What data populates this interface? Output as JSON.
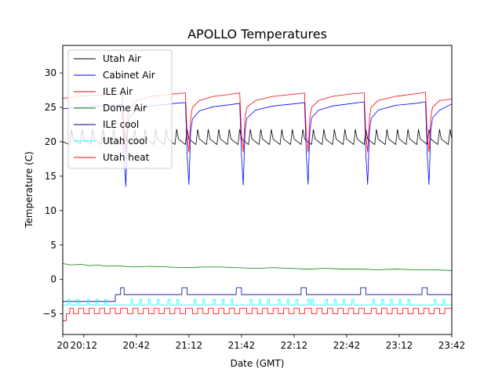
{
  "chart_data": {
    "type": "line",
    "title": "APOLLO Temperatures",
    "xlabel": "Date (GMT)",
    "ylabel": "Temperature (C)",
    "xlim": [
      0,
      222
    ],
    "ylim": [
      -8,
      34
    ],
    "grid": false,
    "legend_position": "top-left",
    "x_unit": "minutes after 20:00 GMT",
    "x_ticks": [
      {
        "value": 0,
        "label": "20"
      },
      {
        "value": 12,
        "label": "20:12"
      },
      {
        "value": 42,
        "label": "20:42"
      },
      {
        "value": 72,
        "label": "21:12"
      },
      {
        "value": 102,
        "label": "21:42"
      },
      {
        "value": 132,
        "label": "22:12"
      },
      {
        "value": 162,
        "label": "22:42"
      },
      {
        "value": 192,
        "label": "23:12"
      },
      {
        "value": 222,
        "label": "23:42"
      }
    ],
    "y_ticks": [
      {
        "value": -5,
        "label": "−5"
      },
      {
        "value": 0,
        "label": "0"
      },
      {
        "value": 5,
        "label": "5"
      },
      {
        "value": 10,
        "label": "10"
      },
      {
        "value": 15,
        "label": "15"
      },
      {
        "value": 20,
        "label": "20"
      },
      {
        "value": 25,
        "label": "25"
      },
      {
        "value": 30,
        "label": "30"
      }
    ],
    "series": [
      {
        "name": "Utah Air",
        "color": "#000000",
        "x": [
          0,
          4,
          5,
          6,
          10,
          11,
          12,
          16,
          17,
          18,
          22,
          23,
          24,
          28,
          29,
          30,
          34,
          35,
          36,
          40,
          41,
          42,
          46,
          47,
          48,
          52,
          53,
          54,
          58,
          59,
          60,
          64,
          65,
          66,
          70,
          71,
          72,
          76,
          77,
          78,
          82,
          83,
          84,
          88,
          89,
          90,
          94,
          95,
          96,
          100,
          101,
          102,
          106,
          107,
          108,
          112,
          113,
          114,
          118,
          119,
          120,
          124,
          125,
          126,
          130,
          131,
          132,
          136,
          137,
          138,
          142,
          143,
          144,
          148,
          149,
          150,
          154,
          155,
          156,
          160,
          161,
          162,
          166,
          167,
          168,
          172,
          173,
          174,
          178,
          179,
          180,
          184,
          185,
          186,
          190,
          191,
          192,
          196,
          197,
          198,
          202,
          203,
          204,
          208,
          209,
          210,
          214,
          215,
          216,
          220,
          221,
          222
        ],
        "values": [
          20.0,
          19.6,
          21.8,
          20.4,
          19.6,
          21.8,
          20.4,
          19.6,
          21.8,
          20.4,
          19.6,
          21.8,
          20.4,
          19.6,
          21.8,
          20.4,
          19.6,
          21.8,
          20.4,
          19.6,
          21.8,
          20.4,
          19.6,
          21.8,
          20.4,
          19.6,
          21.8,
          20.4,
          19.6,
          21.8,
          20.4,
          19.6,
          21.8,
          20.4,
          19.6,
          21.8,
          20.4,
          19.6,
          21.8,
          20.4,
          19.6,
          21.8,
          20.4,
          19.6,
          21.8,
          20.4,
          19.6,
          21.8,
          20.4,
          19.6,
          21.8,
          20.4,
          19.6,
          21.8,
          20.4,
          19.6,
          21.8,
          20.4,
          19.6,
          21.8,
          20.4,
          19.6,
          21.8,
          20.4,
          19.6,
          21.8,
          20.4,
          19.6,
          21.8,
          20.4,
          19.6,
          21.8,
          20.4,
          19.6,
          21.8,
          20.4,
          19.6,
          21.8,
          20.4,
          19.6,
          21.8,
          20.4,
          19.6,
          21.8,
          20.4,
          19.6,
          21.8,
          20.4,
          19.6,
          21.8,
          20.4,
          19.6,
          21.8,
          20.4,
          19.6,
          21.8,
          20.4,
          19.6,
          21.8,
          20.4,
          19.6,
          21.8,
          20.4,
          19.6,
          21.8,
          20.4,
          19.6,
          21.8,
          20.4,
          19.6,
          21.8,
          20.4
        ]
      },
      {
        "name": "Cabinet Air",
        "color": "#0000ff",
        "x": [
          0,
          10,
          20,
          30,
          34,
          35,
          36,
          37,
          38,
          42,
          50,
          65,
          70,
          71,
          72,
          73,
          74,
          78,
          86,
          96,
          101,
          102,
          103,
          104,
          105,
          110,
          120,
          135,
          138,
          139,
          140,
          141,
          142,
          146,
          154,
          166,
          172,
          173,
          174,
          175,
          176,
          180,
          190,
          202,
          207,
          208,
          209,
          210,
          211,
          215,
          222
        ],
        "values": [
          24.8,
          25.0,
          25.2,
          25.3,
          25.4,
          18.0,
          13.5,
          21.5,
          23.5,
          24.6,
          25.2,
          25.6,
          25.7,
          18.0,
          13.8,
          21.5,
          23.3,
          24.5,
          25.1,
          25.4,
          25.6,
          18.0,
          13.7,
          21.5,
          23.4,
          24.6,
          25.2,
          25.6,
          25.7,
          18.0,
          13.8,
          21.5,
          23.5,
          24.6,
          25.2,
          25.6,
          25.8,
          18.0,
          13.8,
          21.5,
          23.4,
          24.6,
          25.3,
          25.6,
          25.8,
          18.0,
          13.8,
          21.5,
          23.5,
          24.6,
          25.5
        ]
      },
      {
        "name": "ILE Air",
        "color": "#ff0000",
        "x": [
          0,
          10,
          20,
          30,
          34,
          35,
          36,
          37,
          38,
          42,
          50,
          65,
          70,
          71,
          72,
          73,
          74,
          78,
          86,
          96,
          101,
          102,
          103,
          104,
          105,
          110,
          120,
          135,
          138,
          139,
          140,
          141,
          142,
          146,
          154,
          166,
          172,
          173,
          174,
          175,
          176,
          180,
          190,
          202,
          207,
          208,
          209,
          210,
          211,
          215,
          222
        ],
        "values": [
          26.3,
          26.6,
          26.8,
          26.9,
          27.0,
          21.0,
          18.5,
          23.5,
          25.0,
          26.0,
          26.6,
          27.0,
          27.1,
          21.0,
          18.5,
          23.5,
          25.0,
          26.0,
          26.6,
          26.9,
          27.1,
          21.0,
          18.5,
          23.5,
          25.0,
          26.0,
          26.6,
          27.0,
          27.1,
          21.0,
          18.5,
          23.5,
          25.0,
          26.0,
          26.6,
          27.0,
          27.1,
          21.0,
          18.5,
          23.5,
          25.0,
          26.0,
          26.6,
          27.0,
          27.2,
          21.0,
          18.5,
          23.5,
          25.0,
          26.0,
          26.2
        ]
      },
      {
        "name": "Dome Air",
        "color": "#008000",
        "x": [
          0,
          5,
          10,
          15,
          20,
          25,
          30,
          40,
          50,
          60,
          70,
          80,
          90,
          100,
          110,
          120,
          130,
          140,
          150,
          160,
          170,
          180,
          190,
          200,
          210,
          222
        ],
        "values": [
          2.3,
          2.1,
          2.2,
          2.0,
          2.1,
          1.9,
          2.0,
          1.8,
          1.9,
          1.8,
          1.7,
          1.8,
          1.8,
          1.7,
          1.6,
          1.7,
          1.6,
          1.5,
          1.6,
          1.5,
          1.5,
          1.4,
          1.5,
          1.4,
          1.4,
          1.3
        ]
      },
      {
        "name": "ILE cool",
        "color": "#00008b",
        "x": [
          0,
          30,
          30,
          33,
          33,
          35,
          35,
          68,
          68,
          71,
          71,
          99,
          99,
          102,
          102,
          136,
          136,
          139,
          139,
          170,
          170,
          173,
          173,
          205,
          205,
          208,
          208,
          222
        ],
        "values": [
          -3.2,
          -3.2,
          -2.2,
          -2.2,
          -1.2,
          -1.2,
          -2.2,
          -2.2,
          -1.2,
          -1.2,
          -2.2,
          -2.2,
          -1.2,
          -1.2,
          -2.2,
          -2.2,
          -1.2,
          -1.2,
          -2.2,
          -2.2,
          -1.2,
          -1.2,
          -2.2,
          -2.2,
          -1.2,
          -1.2,
          -2.2,
          -2.2
        ]
      },
      {
        "name": "Utah cool",
        "color": "#00ffff",
        "x": [
          0,
          3,
          3,
          4,
          4,
          8,
          8,
          9,
          9,
          14,
          14,
          15,
          15,
          19,
          19,
          20,
          20,
          24,
          24,
          25,
          25,
          39,
          39,
          40,
          40,
          44,
          44,
          45,
          45,
          49,
          49,
          50,
          50,
          54,
          54,
          55,
          55,
          60,
          60,
          61,
          61,
          65,
          65,
          66,
          66,
          75,
          75,
          76,
          76,
          80,
          80,
          81,
          81,
          86,
          86,
          87,
          87,
          91,
          91,
          92,
          92,
          96,
          96,
          97,
          97,
          107,
          107,
          108,
          108,
          112,
          112,
          113,
          113,
          117,
          117,
          118,
          118,
          123,
          123,
          124,
          124,
          128,
          128,
          129,
          129,
          133,
          133,
          134,
          134,
          140,
          140,
          141,
          141,
          142,
          142,
          143,
          143,
          150,
          150,
          151,
          151,
          155,
          155,
          156,
          156,
          160,
          160,
          161,
          161,
          165,
          165,
          166,
          166,
          177,
          177,
          178,
          178,
          182,
          182,
          183,
          183,
          187,
          187,
          188,
          188,
          192,
          192,
          193,
          193,
          197,
          197,
          198,
          198,
          212,
          212,
          213,
          213,
          217,
          217,
          218,
          218,
          222
        ],
        "values": [
          -3.7,
          -3.7,
          -2.9,
          -2.9,
          -3.7,
          -3.7,
          -2.9,
          -2.9,
          -3.7,
          -3.7,
          -2.9,
          -2.9,
          -3.7,
          -3.7,
          -2.9,
          -2.9,
          -3.7,
          -3.7,
          -2.9,
          -2.9,
          -3.7,
          -3.7,
          -2.9,
          -2.9,
          -3.7,
          -3.7,
          -2.9,
          -2.9,
          -3.7,
          -3.7,
          -2.9,
          -2.9,
          -3.7,
          -3.7,
          -2.9,
          -2.9,
          -3.7,
          -3.7,
          -2.9,
          -2.9,
          -3.7,
          -3.7,
          -2.9,
          -2.9,
          -3.7,
          -3.7,
          -2.9,
          -2.9,
          -3.7,
          -3.7,
          -2.9,
          -2.9,
          -3.7,
          -3.7,
          -2.9,
          -2.9,
          -3.7,
          -3.7,
          -2.9,
          -2.9,
          -3.7,
          -3.7,
          -2.9,
          -2.9,
          -3.7,
          -3.7,
          -2.9,
          -2.9,
          -3.7,
          -3.7,
          -2.9,
          -2.9,
          -3.7,
          -3.7,
          -2.9,
          -2.9,
          -3.7,
          -3.7,
          -2.9,
          -2.9,
          -3.7,
          -3.7,
          -2.9,
          -2.9,
          -3.7,
          -3.7,
          -2.9,
          -2.9,
          -3.7,
          -3.7,
          -2.9,
          -2.9,
          -3.7,
          -3.7,
          -2.9,
          -2.9,
          -3.7,
          -3.7,
          -2.9,
          -2.9,
          -3.7,
          -3.7,
          -2.9,
          -2.9,
          -3.7,
          -3.7,
          -2.9,
          -2.9,
          -3.7,
          -3.7,
          -2.9,
          -2.9,
          -3.7,
          -3.7,
          -2.9,
          -2.9,
          -3.7,
          -3.7,
          -2.9,
          -2.9,
          -3.7,
          -3.7,
          -2.9,
          -2.9,
          -3.7,
          -3.7,
          -2.9,
          -2.9,
          -3.7,
          -3.7,
          -2.9,
          -2.9,
          -3.7,
          -3.7,
          -2.9,
          -2.9,
          -3.7,
          -3.7,
          -2.9,
          -2.9,
          -3.7,
          -3.7
        ]
      },
      {
        "name": "Utah heat",
        "color": "#ff0000",
        "x": [
          0,
          2,
          2,
          4,
          4,
          6,
          6,
          9,
          9,
          12,
          12,
          15,
          15,
          18,
          18,
          21,
          21,
          24,
          24,
          27,
          27,
          30,
          30,
          33,
          33,
          37,
          37,
          40,
          40,
          43,
          43,
          46,
          46,
          49,
          49,
          52,
          52,
          55,
          55,
          58,
          58,
          61,
          61,
          64,
          64,
          67,
          67,
          70,
          70,
          74,
          74,
          77,
          77,
          80,
          80,
          83,
          83,
          86,
          86,
          89,
          89,
          92,
          92,
          95,
          95,
          98,
          98,
          101,
          101,
          105,
          105,
          108,
          108,
          111,
          111,
          114,
          114,
          117,
          117,
          120,
          120,
          123,
          123,
          126,
          126,
          129,
          129,
          132,
          132,
          135,
          135,
          138,
          138,
          142,
          142,
          145,
          145,
          148,
          148,
          151,
          151,
          154,
          154,
          157,
          157,
          160,
          160,
          163,
          163,
          166,
          166,
          169,
          169,
          172,
          172,
          176,
          176,
          179,
          179,
          182,
          182,
          185,
          185,
          188,
          188,
          191,
          191,
          194,
          194,
          197,
          197,
          200,
          200,
          203,
          203,
          206,
          206,
          209,
          209,
          212,
          212,
          215,
          215,
          218,
          218,
          222
        ],
        "values": [
          -6.0,
          -6.0,
          -5.0,
          -5.0,
          -4.2,
          -4.2,
          -5.0,
          -5.0,
          -4.2,
          -4.2,
          -5.0,
          -5.0,
          -4.2,
          -4.2,
          -5.0,
          -5.0,
          -4.2,
          -4.2,
          -5.0,
          -5.0,
          -4.2,
          -4.2,
          -5.0,
          -5.0,
          -4.2,
          -4.2,
          -5.0,
          -5.0,
          -4.2,
          -4.2,
          -5.0,
          -5.0,
          -4.2,
          -4.2,
          -5.0,
          -5.0,
          -4.2,
          -4.2,
          -5.0,
          -5.0,
          -4.2,
          -4.2,
          -5.0,
          -5.0,
          -4.2,
          -4.2,
          -5.0,
          -5.0,
          -4.2,
          -4.2,
          -5.0,
          -5.0,
          -4.2,
          -4.2,
          -5.0,
          -5.0,
          -4.2,
          -4.2,
          -5.0,
          -5.0,
          -4.2,
          -4.2,
          -5.0,
          -5.0,
          -4.2,
          -4.2,
          -5.0,
          -5.0,
          -4.2,
          -4.2,
          -5.0,
          -5.0,
          -4.2,
          -4.2,
          -5.0,
          -5.0,
          -4.2,
          -4.2,
          -5.0,
          -5.0,
          -4.2,
          -4.2,
          -5.0,
          -5.0,
          -4.2,
          -4.2,
          -5.0,
          -5.0,
          -4.2,
          -4.2,
          -5.0,
          -5.0,
          -4.2,
          -4.2,
          -5.0,
          -5.0,
          -4.2,
          -4.2,
          -5.0,
          -5.0,
          -4.2,
          -4.2,
          -5.0,
          -5.0,
          -4.2,
          -4.2,
          -5.0,
          -5.0,
          -4.2,
          -4.2,
          -5.0,
          -5.0,
          -4.2,
          -4.2,
          -5.0,
          -5.0,
          -4.2,
          -4.2,
          -5.0,
          -5.0,
          -4.2,
          -4.2,
          -5.0,
          -5.0,
          -4.2,
          -4.2,
          -5.0,
          -5.0,
          -4.2,
          -4.2,
          -5.0,
          -5.0,
          -4.2,
          -4.2,
          -5.0,
          -5.0,
          -4.2,
          -4.2,
          -5.0,
          -5.0,
          -4.2,
          -4.2,
          -5.0,
          -5.0,
          -4.2,
          -4.2
        ]
      }
    ]
  }
}
